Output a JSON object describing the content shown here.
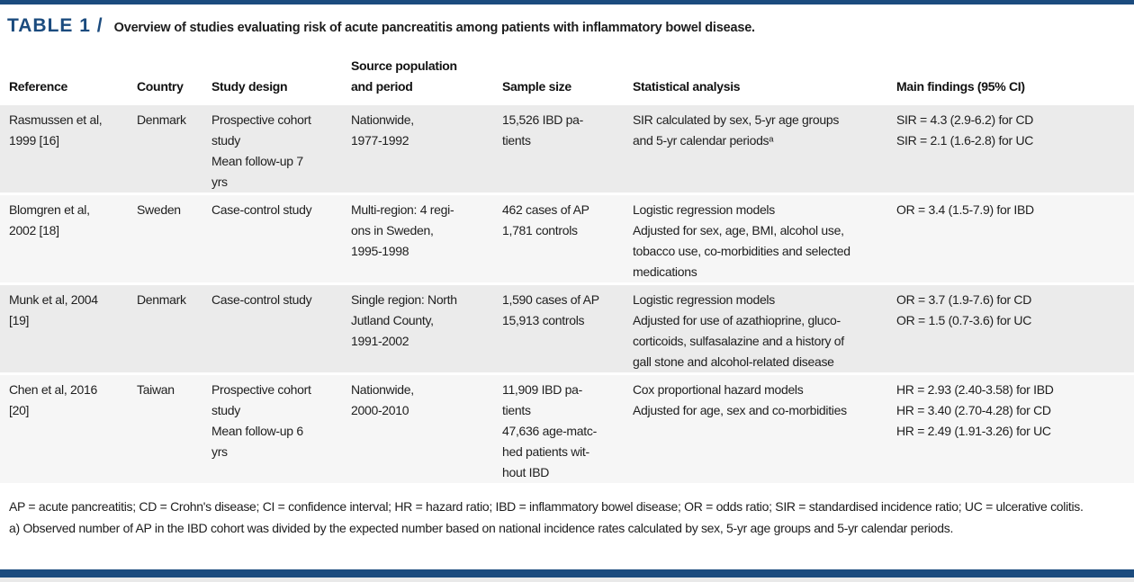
{
  "accent_color": "#1b4b7e",
  "header": {
    "table_label": "TABLE 1 /",
    "caption": "Overview of studies evaluating risk of acute pancreatitis among patients with inflammatory bowel disease."
  },
  "table": {
    "columns": [
      "Reference",
      "Country",
      "Study design",
      "Source population\nand period",
      "Sample size",
      "Statistical analysis",
      "Main findings (95% CI)"
    ],
    "rows": [
      {
        "reference": "Rasmussen et al,\n1999 [16]",
        "country": "Denmark",
        "study_design": "Prospective cohort\nstudy\nMean follow-up 7\nyrs",
        "source_population": "Nationwide,\n1977-1992",
        "sample_size": "15,526 IBD pa-\ntients",
        "statistical_analysis": "SIR calculated by sex, 5-yr age groups\nand 5-yr calendar periodsᵃ",
        "main_findings": "SIR = 4.3 (2.9-6.2) for CD\nSIR = 2.1 (1.6-2.8) for UC"
      },
      {
        "reference": "Blomgren et al,\n2002 [18]",
        "country": "Sweden",
        "study_design": "Case-control study",
        "source_population": "Multi-region: 4 regi-\nons in Sweden,\n1995-1998",
        "sample_size": "462 cases of AP\n1,781 controls",
        "statistical_analysis": "Logistic regression models\nAdjusted for sex, age, BMI, alcohol use,\ntobacco use, co-morbidities and selected\nmedications",
        "main_findings": "OR = 3.4 (1.5-7.9) for IBD"
      },
      {
        "reference": "Munk et al, 2004\n[19]",
        "country": "Denmark",
        "study_design": "Case-control study",
        "source_population": "Single region: North\nJutland County,\n1991-2002",
        "sample_size": "1,590 cases of AP\n15,913 controls",
        "statistical_analysis": "Logistic regression models\nAdjusted for use of azathioprine, gluco-\ncorticoids, sulfasalazine and a history of\ngall stone and alcohol-related disease",
        "main_findings": "OR = 3.7 (1.9-7.6) for CD\nOR = 1.5 (0.7-3.6) for UC"
      },
      {
        "reference": "Chen et al, 2016\n[20]",
        "country": "Taiwan",
        "study_design": "Prospective cohort\nstudy\nMean follow-up 6\nyrs",
        "source_population": "Nationwide,\n2000-2010",
        "sample_size": "11,909 IBD pa-\ntients\n47,636 age-matc-\nhed patients wit-\nhout IBD",
        "statistical_analysis": "Cox proportional hazard models\nAdjusted for age, sex and co-morbidities",
        "main_findings": "HR = 2.93 (2.40-3.58) for IBD\nHR = 3.40 (2.70-4.28) for CD\nHR = 2.49 (1.91-3.26) for UC"
      }
    ]
  },
  "footnotes": {
    "abbreviations": "AP = acute pancreatitis; CD = Crohn's disease; CI = confidence interval; HR = hazard ratio; IBD = inflammatory bowel disease; OR = odds ratio; SIR = standardised incidence ratio; UC = ulcerative colitis.",
    "note_a": "a)  Observed number of AP in the IBD cohort was divided by the expected number based on national incidence rates calculated by sex, 5-yr age groups and 5-yr calendar periods."
  }
}
